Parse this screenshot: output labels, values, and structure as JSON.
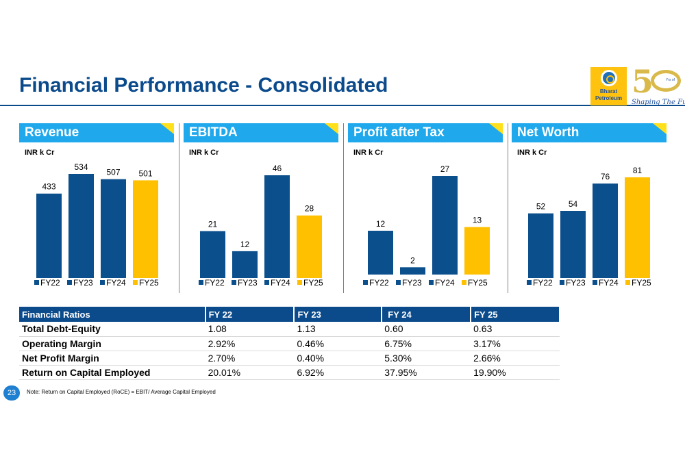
{
  "title": "Financial Performance - Consolidated",
  "logo": {
    "brand_line1": "Bharat",
    "brand_line2": "Petroleum",
    "years_text": "Yrs of",
    "tagline": "Shaping The Future"
  },
  "colors": {
    "bar_dark": "#0b4f8c",
    "bar_highlight": "#ffc000",
    "panel_header": "#1fa8ec",
    "title": "#0b4a8b"
  },
  "chart_data": [
    {
      "type": "bar",
      "title": "Revenue",
      "unit": "INR k Cr",
      "categories": [
        "FY22",
        "FY23",
        "FY24",
        "FY25"
      ],
      "values": [
        433,
        534,
        507,
        501
      ],
      "legend": [
        "FY22",
        "FY23",
        "FY24",
        "FY25"
      ],
      "legend_position": "bottom",
      "grid": false
    },
    {
      "type": "bar",
      "title": "EBITDA",
      "unit": "INR k Cr",
      "categories": [
        "FY22",
        "FY23",
        "FY24",
        "FY25"
      ],
      "values": [
        21,
        12,
        46,
        28
      ],
      "legend": [
        "FY22",
        "FY23",
        "FY24",
        "FY25"
      ],
      "legend_position": "bottom",
      "grid": false
    },
    {
      "type": "bar",
      "title": "Profit after Tax",
      "unit": "INR k Cr",
      "categories": [
        "FY22",
        "FY23",
        "FY24",
        "FY25"
      ],
      "values": [
        12,
        2,
        27,
        13
      ],
      "legend": [
        "FY22",
        "FY23",
        "FY24",
        "FY25"
      ],
      "legend_position": "bottom",
      "grid": false
    },
    {
      "type": "bar",
      "title": "Net Worth",
      "unit": "INR k Cr",
      "categories": [
        "FY22",
        "FY23",
        "FY24",
        "FY25"
      ],
      "values": [
        52,
        54,
        76,
        81
      ],
      "legend": [
        "FY22",
        "FY23",
        "FY24",
        "FY25"
      ],
      "legend_position": "bottom",
      "grid": false
    }
  ],
  "ratios_table": {
    "headers": [
      "Financial Ratios",
      "FY 22",
      "FY 23",
      "FY 24",
      "FY 25"
    ],
    "rows": [
      [
        "Total Debt-Equity",
        "1.08",
        "1.13",
        "0.60",
        "0.63"
      ],
      [
        "Operating Margin",
        "2.92%",
        "0.46%",
        "6.75%",
        "3.17%"
      ],
      [
        "Net Profit Margin",
        "2.70%",
        "0.40%",
        "5.30%",
        "2.66%"
      ],
      [
        "Return on Capital Employed",
        "20.01%",
        "6.92%",
        "37.95%",
        "19.90%"
      ]
    ]
  },
  "page_number": "23",
  "footnote": "Note: Return on Capital Employed (RoCE) = EBIT/ Average Capital Employed"
}
